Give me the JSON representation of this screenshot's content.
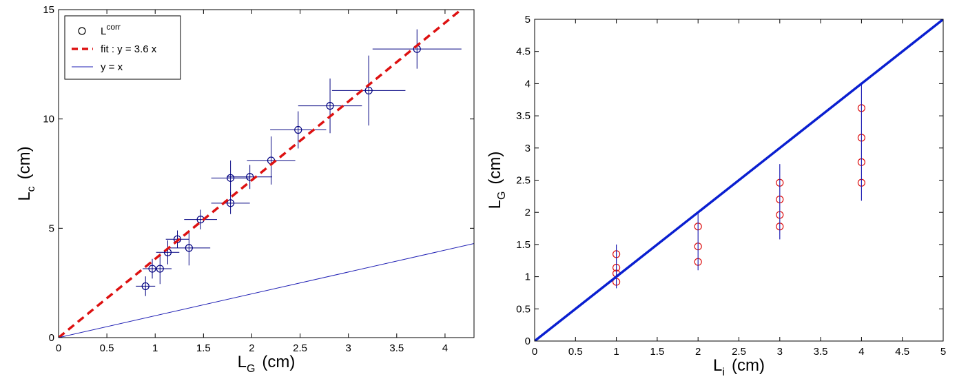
{
  "chart_data": [
    {
      "type": "scatter",
      "xlabel": {
        "main": "L",
        "sub": "G",
        "unit": "(cm)"
      },
      "ylabel": {
        "main": "L",
        "sub": "c",
        "unit": "(cm)"
      },
      "xlim": [
        0,
        4.3
      ],
      "ylim": [
        0,
        15
      ],
      "xticks": [
        "0",
        "0.5",
        "1",
        "1.5",
        "2",
        "2.5",
        "3",
        "3.5",
        "4"
      ],
      "yticks": [
        "0",
        "5",
        "10",
        "15"
      ],
      "grid": false,
      "legend": {
        "position": "top-left",
        "entries": [
          {
            "main": "L",
            "sup": "corr",
            "marker": "open-circle",
            "color": "#000000"
          },
          {
            "main": "fit  : y = 3.6 x",
            "sup": "",
            "marker": "dashed-line",
            "color": "#dd1111"
          },
          {
            "main": "y = x",
            "sup": "",
            "marker": "thin-line",
            "color": "#1f1fb4"
          }
        ]
      },
      "series": [
        {
          "name": "L corr",
          "color": "#000080",
          "points": [
            {
              "x": 0.9,
              "y": 2.35,
              "xerr": 0.1,
              "yerr": 0.45
            },
            {
              "x": 0.97,
              "y": 3.15,
              "xerr": 0.1,
              "yerr": 0.45
            },
            {
              "x": 1.05,
              "y": 3.15,
              "xerr": 0.12,
              "yerr": 0.7
            },
            {
              "x": 1.13,
              "y": 3.9,
              "xerr": 0.12,
              "yerr": 0.55
            },
            {
              "x": 1.23,
              "y": 4.5,
              "xerr": 0.12,
              "yerr": 0.4
            },
            {
              "x": 1.35,
              "y": 4.1,
              "xerr": 0.22,
              "yerr": 0.8
            },
            {
              "x": 1.47,
              "y": 5.4,
              "xerr": 0.17,
              "yerr": 0.45
            },
            {
              "x": 1.78,
              "y": 6.15,
              "xerr": 0.2,
              "yerr": 0.5
            },
            {
              "x": 1.78,
              "y": 7.3,
              "xerr": 0.2,
              "yerr": 0.8
            },
            {
              "x": 1.98,
              "y": 7.35,
              "xerr": 0.23,
              "yerr": 0.55
            },
            {
              "x": 2.2,
              "y": 8.1,
              "xerr": 0.25,
              "yerr": 1.1
            },
            {
              "x": 2.48,
              "y": 9.5,
              "xerr": 0.29,
              "yerr": 0.85
            },
            {
              "x": 2.81,
              "y": 10.6,
              "xerr": 0.33,
              "yerr": 1.25
            },
            {
              "x": 3.21,
              "y": 11.3,
              "xerr": 0.38,
              "yerr": 1.6
            },
            {
              "x": 3.71,
              "y": 13.2,
              "xerr": 0.46,
              "yerr": 0.9
            }
          ]
        },
        {
          "name": "fit  : y = 3.6 x",
          "kind": "line",
          "slope": 3.6,
          "color": "#dd1111"
        },
        {
          "name": "y = x",
          "kind": "line",
          "slope": 1,
          "color": "#1f1fb4"
        }
      ]
    },
    {
      "type": "scatter",
      "xlabel": {
        "main": "L",
        "sub": "i",
        "unit": "(cm)"
      },
      "ylabel": {
        "main": "L",
        "sub": "G",
        "unit": "(cm)"
      },
      "xlim": [
        0,
        5
      ],
      "ylim": [
        0,
        5
      ],
      "xticks": [
        "0",
        "0.5",
        "1",
        "1.5",
        "2",
        "2.5",
        "3",
        "3.5",
        "4",
        "4.5",
        "5"
      ],
      "yticks": [
        "0",
        "0.5",
        "1",
        "1.5",
        "2",
        "2.5",
        "3",
        "3.5",
        "4",
        "4.5",
        "5"
      ],
      "grid": false,
      "series": [
        {
          "kind": "points",
          "color": "#dd1111",
          "points": [
            {
              "x": 1,
              "y": 0.92
            },
            {
              "x": 1,
              "y": 1.05
            },
            {
              "x": 1,
              "y": 1.14
            },
            {
              "x": 1,
              "y": 1.35
            },
            {
              "x": 2,
              "y": 1.23
            },
            {
              "x": 2,
              "y": 1.47
            },
            {
              "x": 2,
              "y": 1.78
            },
            {
              "x": 3,
              "y": 1.78
            },
            {
              "x": 3,
              "y": 1.96
            },
            {
              "x": 3,
              "y": 2.2
            },
            {
              "x": 3,
              "y": 2.46
            },
            {
              "x": 4,
              "y": 2.46
            },
            {
              "x": 4,
              "y": 2.78
            },
            {
              "x": 4,
              "y": 3.16
            },
            {
              "x": 4,
              "y": 3.62
            }
          ]
        },
        {
          "kind": "vlines",
          "color": "#1f1fb4",
          "ranges": [
            {
              "x": 1,
              "ymin": 0.82,
              "ymax": 1.5
            },
            {
              "x": 2,
              "ymin": 1.1,
              "ymax": 2.02
            },
            {
              "x": 3,
              "ymin": 1.58,
              "ymax": 2.75
            },
            {
              "x": 4,
              "ymin": 2.18,
              "ymax": 3.98
            }
          ]
        },
        {
          "kind": "line",
          "slope": 1,
          "color": "#0a1fd0"
        }
      ]
    }
  ]
}
